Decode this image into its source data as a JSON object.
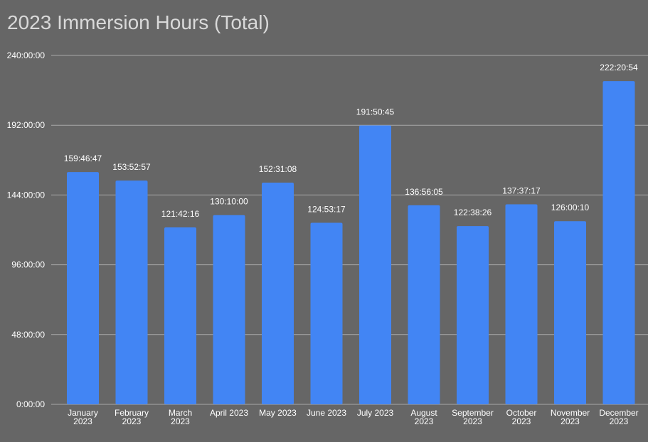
{
  "chart_data": {
    "type": "bar",
    "title": "2023 Immersion Hours (Total)",
    "xlabel": "",
    "ylabel": "",
    "ylim_hours": [
      0,
      240
    ],
    "y_ticks": [
      {
        "hours": 0,
        "label": "0:00:00"
      },
      {
        "hours": 48,
        "label": "48:00:00"
      },
      {
        "hours": 96,
        "label": "96:00:00"
      },
      {
        "hours": 144,
        "label": "144:00:00"
      },
      {
        "hours": 192,
        "label": "192:00:00"
      },
      {
        "hours": 240,
        "label": "240:00:00"
      }
    ],
    "categories": [
      [
        "January",
        "2023"
      ],
      [
        "February",
        "2023"
      ],
      [
        "March",
        "2023"
      ],
      [
        "April 2023"
      ],
      [
        "May 2023"
      ],
      [
        "June 2023"
      ],
      [
        "July 2023"
      ],
      [
        "August",
        "2023"
      ],
      [
        "September",
        "2023"
      ],
      [
        "October",
        "2023"
      ],
      [
        "November",
        "2023"
      ],
      [
        "December",
        "2023"
      ]
    ],
    "labels": [
      "159:46:47",
      "153:52:57",
      "121:42:16",
      "130:10:00",
      "152:31:08",
      "124:53:17",
      "191:50:45",
      "136:56:05",
      "122:38:26",
      "137:37:17",
      "126:00:10",
      "222:20:54"
    ],
    "grid": true,
    "legend": "none",
    "colors": {
      "bar": "#4285f4",
      "background": "#666666",
      "grid": "#a8a8a8",
      "text": "#ffffff",
      "title": "#d9d9d9"
    }
  }
}
